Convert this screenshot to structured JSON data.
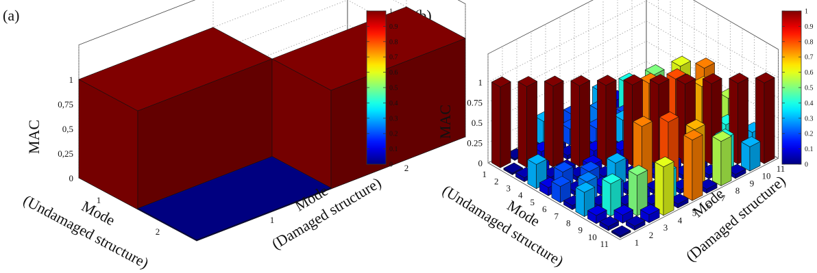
{
  "panels": {
    "a": {
      "tag": "(a)"
    },
    "b": {
      "tag": "(b)"
    }
  },
  "colorbar": {
    "ticks": [
      "1",
      "0.9",
      "0.8",
      "0.7",
      "0.6",
      "0.5",
      "0.4",
      "0.3",
      "0.2",
      "0.1",
      "0"
    ],
    "colors": [
      "#00007f",
      "#0000ff",
      "#007fff",
      "#00ffff",
      "#7fff7f",
      "#ffff00",
      "#ff7f00",
      "#ff0000",
      "#7f0000"
    ]
  },
  "chart_data": [
    {
      "type": "bar3d",
      "panel": "(a)",
      "zlabel": "MAC",
      "xlabel": [
        "Mode",
        "(Undamaged structure)"
      ],
      "ylabel": [
        "Mode",
        "(Damaged structure)"
      ],
      "x_ticks": [
        "1",
        "2"
      ],
      "y_ticks": [
        "1",
        "2"
      ],
      "z_ticks": [
        "0",
        "0,25",
        "0,5",
        "0,75",
        "1"
      ],
      "zlim": [
        0,
        1
      ],
      "matrix": [
        [
          1,
          0
        ],
        [
          0,
          1
        ]
      ],
      "colorbar": true
    },
    {
      "type": "bar3d",
      "panel": "(b)",
      "zlabel": "MAC",
      "xlabel": [
        "Mode",
        "(Undamaged structure)"
      ],
      "ylabel": [
        "Mode",
        "(Damaged structure)"
      ],
      "x_ticks": [
        "1",
        "2",
        "3",
        "4",
        "5",
        "6",
        "7",
        "8",
        "9",
        "10",
        "11"
      ],
      "y_ticks": [
        "1",
        "2",
        "3",
        "4",
        "5",
        "6",
        "7",
        "8",
        "9",
        "10",
        "11"
      ],
      "z_ticks": [
        "0",
        "0.25",
        "0.5",
        "0.75",
        "1"
      ],
      "zlim": [
        0,
        1
      ],
      "matrix": [
        [
          1.0,
          0.02,
          0.05,
          0.3,
          0.1,
          0.2,
          0.05,
          0.3,
          0.1,
          0.05,
          0.02
        ],
        [
          0.02,
          1.0,
          0.1,
          0.05,
          0.2,
          0.05,
          0.25,
          0.05,
          0.4,
          0.1,
          0.05
        ],
        [
          0.05,
          0.1,
          1.0,
          0.05,
          0.05,
          0.2,
          0.1,
          0.2,
          0.05,
          0.5,
          0.1
        ],
        [
          0.3,
          0.05,
          0.05,
          1.0,
          0.1,
          0.05,
          0.3,
          0.05,
          0.1,
          0.05,
          0.6
        ],
        [
          0.1,
          0.2,
          0.05,
          0.1,
          1.0,
          0.1,
          0.05,
          0.75,
          0.05,
          0.35,
          0.05
        ],
        [
          0.2,
          0.05,
          0.2,
          0.05,
          0.1,
          1.0,
          0.05,
          0.05,
          0.8,
          0.05,
          0.75
        ],
        [
          0.05,
          0.25,
          0.1,
          0.3,
          0.05,
          0.05,
          1.0,
          0.1,
          0.05,
          0.7,
          0.05
        ],
        [
          0.3,
          0.05,
          0.2,
          0.05,
          0.75,
          0.05,
          0.1,
          1.0,
          0.05,
          0.05,
          0.55
        ],
        [
          0.1,
          0.4,
          0.05,
          0.1,
          0.05,
          0.8,
          0.05,
          0.05,
          1.0,
          0.4,
          0.05
        ],
        [
          0.05,
          0.1,
          0.5,
          0.05,
          0.35,
          0.05,
          0.7,
          0.05,
          0.4,
          1.0,
          0.3
        ],
        [
          0.02,
          0.05,
          0.1,
          0.6,
          0.05,
          0.75,
          0.05,
          0.55,
          0.05,
          0.3,
          1.0
        ]
      ],
      "colorbar": true
    }
  ]
}
